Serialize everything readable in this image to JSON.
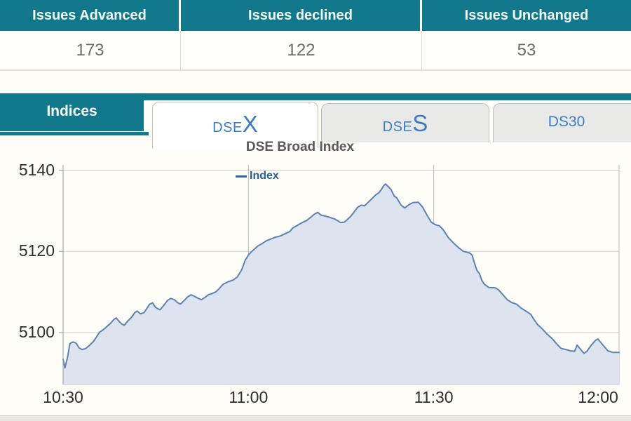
{
  "summary_table": {
    "columns": [
      {
        "header": "Issues Advanced",
        "value": "173"
      },
      {
        "header": "Issues declined",
        "value": "122"
      },
      {
        "header": "Issues Unchanged",
        "value": "53"
      }
    ]
  },
  "tabs": {
    "indices_label": "Indices",
    "items": [
      {
        "prefix": "DSE",
        "suffix": "X",
        "active": true
      },
      {
        "prefix": "DSE",
        "suffix": "S",
        "active": false
      },
      {
        "label": "DS30",
        "active": false
      }
    ]
  },
  "colors": {
    "teal": "#12798d",
    "tab_blue": "#3b7dc4",
    "line": "#5b82b5",
    "fill": "#dde4ef"
  },
  "chart_data": {
    "type": "area",
    "title": "DSE Broad Index",
    "legend_label": "Index",
    "legend_position": "top-center",
    "grid": true,
    "x_ticks": [
      "10:30",
      "11:00",
      "11:30",
      "12:00"
    ],
    "x_tick_minutes": [
      0,
      30,
      60,
      90
    ],
    "y_ticks": [
      5140,
      5120,
      5100
    ],
    "xlim_minutes": [
      0,
      90
    ],
    "ylim": [
      5087.2,
      5141.3
    ],
    "colors": {
      "line": "#5b82b5",
      "fill": "#dde4ef"
    },
    "points": [
      [
        0.0,
        5093.4
      ],
      [
        0.3,
        5091.3
      ],
      [
        0.7,
        5093.8
      ],
      [
        1.1,
        5097.3
      ],
      [
        1.6,
        5097.7
      ],
      [
        2.1,
        5097.4
      ],
      [
        2.6,
        5096.2
      ],
      [
        3.1,
        5095.8
      ],
      [
        3.7,
        5096.1
      ],
      [
        4.3,
        5096.9
      ],
      [
        4.9,
        5097.8
      ],
      [
        5.4,
        5098.9
      ],
      [
        5.9,
        5100.1
      ],
      [
        6.5,
        5100.7
      ],
      [
        7.1,
        5101.5
      ],
      [
        7.7,
        5102.3
      ],
      [
        8.2,
        5103.2
      ],
      [
        8.6,
        5103.6
      ],
      [
        9.1,
        5102.7
      ],
      [
        9.5,
        5102.1
      ],
      [
        9.9,
        5101.8
      ],
      [
        10.5,
        5102.9
      ],
      [
        11.1,
        5103.8
      ],
      [
        11.6,
        5104.9
      ],
      [
        12.0,
        5105.3
      ],
      [
        12.5,
        5104.6
      ],
      [
        13.1,
        5104.9
      ],
      [
        13.5,
        5105.8
      ],
      [
        14.0,
        5107.0
      ],
      [
        14.5,
        5107.3
      ],
      [
        14.9,
        5106.3
      ],
      [
        15.3,
        5105.9
      ],
      [
        15.7,
        5105.6
      ],
      [
        16.3,
        5106.7
      ],
      [
        16.9,
        5107.9
      ],
      [
        17.4,
        5108.4
      ],
      [
        18.0,
        5108.1
      ],
      [
        18.6,
        5107.3
      ],
      [
        19.0,
        5107.0
      ],
      [
        19.6,
        5107.9
      ],
      [
        20.1,
        5108.7
      ],
      [
        20.7,
        5109.3
      ],
      [
        21.3,
        5108.9
      ],
      [
        21.9,
        5108.4
      ],
      [
        22.4,
        5108.1
      ],
      [
        23.0,
        5108.7
      ],
      [
        23.5,
        5109.3
      ],
      [
        24.1,
        5109.6
      ],
      [
        24.7,
        5110.0
      ],
      [
        25.2,
        5110.7
      ],
      [
        25.9,
        5111.9
      ],
      [
        26.7,
        5112.5
      ],
      [
        27.5,
        5112.9
      ],
      [
        28.2,
        5113.7
      ],
      [
        28.9,
        5115.4
      ],
      [
        29.5,
        5117.9
      ],
      [
        30.1,
        5119.3
      ],
      [
        30.5,
        5119.9
      ],
      [
        31.0,
        5120.6
      ],
      [
        31.6,
        5121.4
      ],
      [
        32.2,
        5121.9
      ],
      [
        32.9,
        5122.6
      ],
      [
        33.7,
        5123.1
      ],
      [
        34.4,
        5123.5
      ],
      [
        35.2,
        5123.8
      ],
      [
        36.0,
        5124.4
      ],
      [
        36.7,
        5124.9
      ],
      [
        37.2,
        5125.8
      ],
      [
        37.8,
        5126.3
      ],
      [
        38.6,
        5127.0
      ],
      [
        39.4,
        5127.6
      ],
      [
        40.1,
        5128.4
      ],
      [
        40.7,
        5129.2
      ],
      [
        41.2,
        5129.6
      ],
      [
        41.8,
        5128.9
      ],
      [
        42.4,
        5128.7
      ],
      [
        43.1,
        5128.4
      ],
      [
        43.9,
        5128.0
      ],
      [
        44.5,
        5127.5
      ],
      [
        44.9,
        5127.1
      ],
      [
        45.5,
        5127.2
      ],
      [
        46.0,
        5127.8
      ],
      [
        46.6,
        5128.7
      ],
      [
        47.1,
        5129.7
      ],
      [
        47.7,
        5130.9
      ],
      [
        48.3,
        5131.4
      ],
      [
        48.8,
        5131.2
      ],
      [
        49.4,
        5132.1
      ],
      [
        50.0,
        5133.0
      ],
      [
        50.6,
        5133.9
      ],
      [
        51.1,
        5134.4
      ],
      [
        51.5,
        5135.2
      ],
      [
        51.9,
        5136.2
      ],
      [
        52.2,
        5136.6
      ],
      [
        52.8,
        5135.7
      ],
      [
        53.1,
        5135.2
      ],
      [
        53.6,
        5133.6
      ],
      [
        54.0,
        5133.2
      ],
      [
        54.7,
        5131.4
      ],
      [
        55.3,
        5130.7
      ],
      [
        55.9,
        5131.4
      ],
      [
        56.6,
        5132.0
      ],
      [
        57.5,
        5132.1
      ],
      [
        58.2,
        5130.9
      ],
      [
        58.8,
        5129.2
      ],
      [
        59.6,
        5127.2
      ],
      [
        60.2,
        5126.6
      ],
      [
        60.9,
        5126.3
      ],
      [
        61.5,
        5125.4
      ],
      [
        62.4,
        5123.3
      ],
      [
        63.3,
        5121.9
      ],
      [
        64.1,
        5120.8
      ],
      [
        64.8,
        5120.0
      ],
      [
        65.8,
        5119.6
      ],
      [
        66.2,
        5119.1
      ],
      [
        66.6,
        5117.1
      ],
      [
        67.0,
        5115.3
      ],
      [
        67.4,
        5114.5
      ],
      [
        67.8,
        5112.8
      ],
      [
        68.2,
        5111.9
      ],
      [
        68.9,
        5111.1
      ],
      [
        70.0,
        5111.0
      ],
      [
        70.5,
        5110.5
      ],
      [
        71.2,
        5109.3
      ],
      [
        71.9,
        5108.1
      ],
      [
        72.6,
        5107.4
      ],
      [
        73.4,
        5107.0
      ],
      [
        74.1,
        5106.1
      ],
      [
        74.9,
        5105.3
      ],
      [
        75.7,
        5104.5
      ],
      [
        76.1,
        5103.5
      ],
      [
        76.8,
        5102.0
      ],
      [
        77.5,
        5101.0
      ],
      [
        78.3,
        5099.7
      ],
      [
        79.1,
        5098.6
      ],
      [
        79.9,
        5097.2
      ],
      [
        80.6,
        5096.1
      ],
      [
        81.4,
        5095.8
      ],
      [
        82.1,
        5095.5
      ],
      [
        82.8,
        5095.4
      ],
      [
        83.2,
        5096.9
      ],
      [
        83.7,
        5096.0
      ],
      [
        84.3,
        5094.9
      ],
      [
        84.8,
        5095.4
      ],
      [
        85.5,
        5096.9
      ],
      [
        86.2,
        5098.1
      ],
      [
        86.6,
        5098.4
      ],
      [
        87.4,
        5096.9
      ],
      [
        88.2,
        5095.5
      ],
      [
        89.0,
        5095.1
      ],
      [
        90.0,
        5095.1
      ]
    ]
  }
}
